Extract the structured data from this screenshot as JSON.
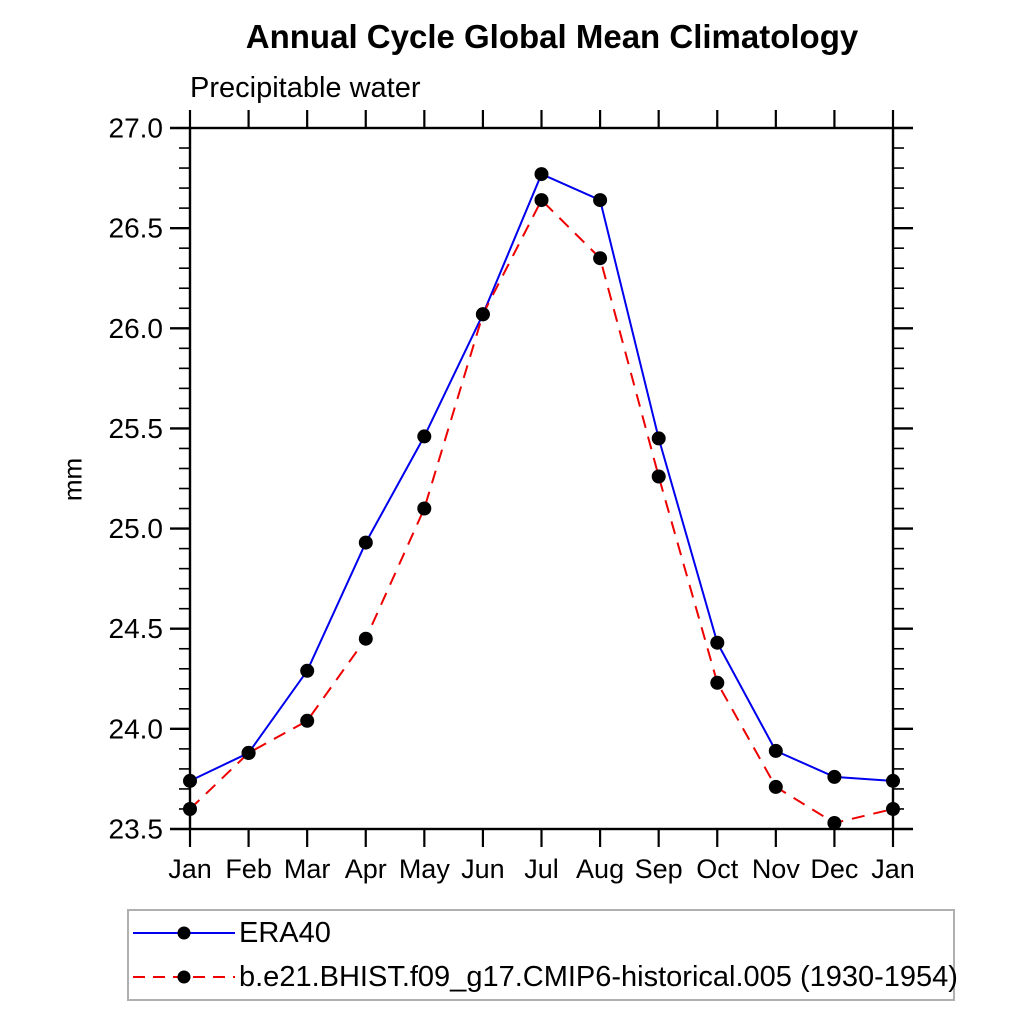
{
  "chart": {
    "title": "Annual Cycle Global Mean Climatology",
    "subtitle": "Precipitable water",
    "ylabel": "mm"
  },
  "chart_data": {
    "type": "line",
    "title": "Annual Cycle Global Mean Climatology",
    "subtitle": "Precipitable water",
    "xlabel": "",
    "ylabel": "mm",
    "categories": [
      "Jan",
      "Feb",
      "Mar",
      "Apr",
      "May",
      "Jun",
      "Jul",
      "Aug",
      "Sep",
      "Oct",
      "Nov",
      "Dec",
      "Jan"
    ],
    "ylim": [
      23.5,
      27.0
    ],
    "ytick_major_step": 0.5,
    "ytick_minor_step": 0.1,
    "ytick_major_values": [
      23.5,
      24.0,
      24.5,
      25.0,
      25.5,
      26.0,
      26.5,
      27.0
    ],
    "grid": false,
    "legend_position": "bottom-left",
    "axis_color": "#000000",
    "marker_color": "#000000",
    "series": [
      {
        "name": "ERA40",
        "color": "#0000ee",
        "style": "solid",
        "marker": "circle",
        "values": [
          23.74,
          23.88,
          24.29,
          24.93,
          25.46,
          26.07,
          26.77,
          26.64,
          25.45,
          24.43,
          23.89,
          23.76,
          23.74
        ]
      },
      {
        "name": "b.e21.BHIST.f09_g17.CMIP6-historical.005 (1930-1954)",
        "color": "#ee0000",
        "style": "dashed",
        "marker": "circle",
        "values": [
          23.6,
          23.88,
          24.04,
          24.45,
          25.1,
          26.07,
          26.64,
          26.35,
          25.26,
          24.23,
          23.71,
          23.53,
          23.6
        ]
      }
    ]
  }
}
